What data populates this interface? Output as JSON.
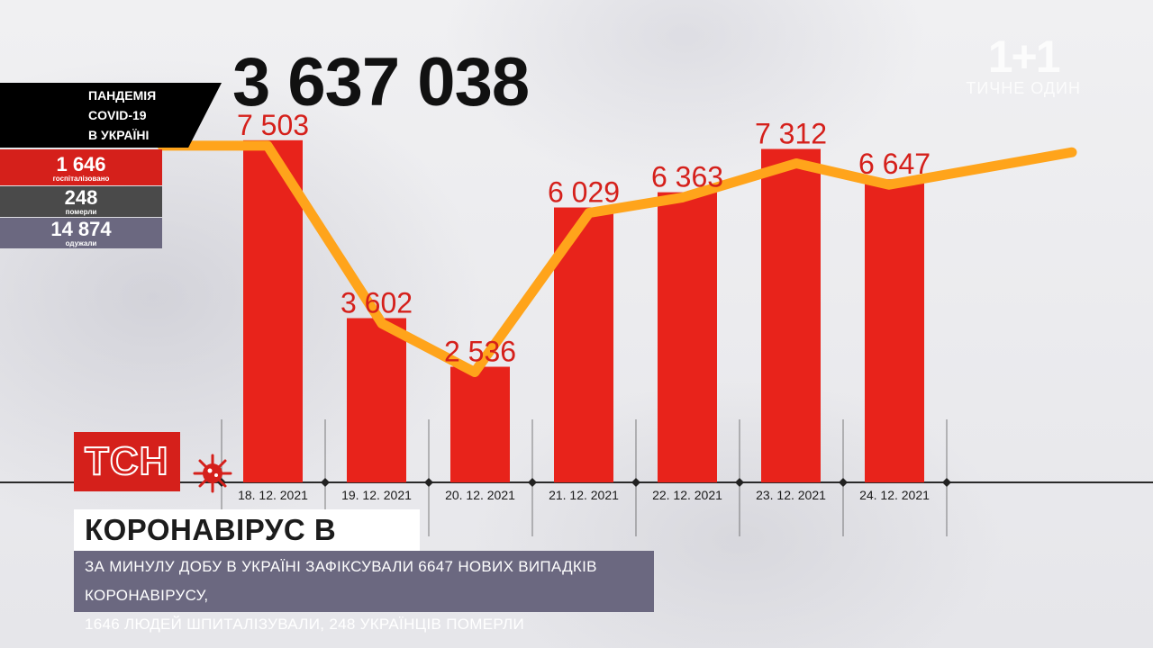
{
  "watermark": {
    "logo": "1+1",
    "sub": "ТИЧНЕ ОДИН"
  },
  "total_cases": "3 637 038",
  "panel": {
    "title_lines": [
      "ПАНДЕМІЯ",
      "COVID-19",
      "В УКРАЇНІ"
    ],
    "hospitalized": {
      "value": "1 646",
      "label": "госпіталізовано"
    },
    "died": {
      "value": "248",
      "label": "померли"
    },
    "recovered": {
      "value": "14 874",
      "label": "одужали"
    }
  },
  "colors": {
    "bar": "#e8231b",
    "line": "#ffa41b",
    "label": "#d5201b",
    "brand_red": "#d5201b",
    "subtitle_bg": "#6b6880"
  },
  "chart_data": {
    "type": "bar",
    "categories": [
      "18. 12. 2021",
      "19. 12. 2021",
      "20. 12. 2021",
      "21. 12. 2021",
      "22. 12. 2021",
      "23. 12. 2021",
      "24. 12. 2021"
    ],
    "values": [
      7503,
      3602,
      2536,
      6029,
      6363,
      7312,
      6647
    ],
    "value_labels": [
      "7 503",
      "3 602",
      "2 536",
      "6 029",
      "6 363",
      "7 312",
      "6 647"
    ],
    "overlay_line": true,
    "ylim": [
      0,
      9000
    ],
    "grid": false
  },
  "logo": {
    "tsn": "ТСН"
  },
  "headline": "КОРОНАВІРУС В УКРАЇНІ",
  "subtitle_lines": [
    "ЗА МИНУЛУ ДОБУ В УКРАЇНІ ЗАФІКСУВАЛИ 6647 НОВИХ ВИПАДКІВ КОРОНАВІРУСУ,",
    "1646 ЛЮДЕЙ ШПИТАЛІЗУВАЛИ, 248 УКРАЇНЦІВ ПОМЕРЛИ"
  ]
}
